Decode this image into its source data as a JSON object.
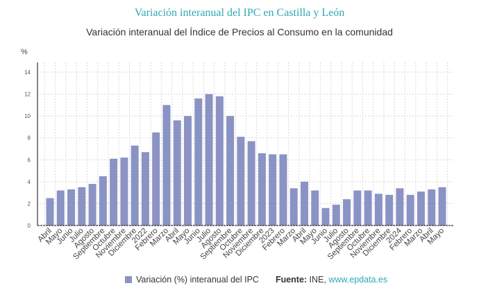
{
  "chart_data": {
    "type": "bar",
    "title": "Variación interanual del IPC en Castilla y León",
    "subtitle": "Variación interanual del Índice de Precios al Consumo en la comunidad",
    "ylabel": "%",
    "xlabel": "",
    "ylim": [
      0,
      14
    ],
    "yticks": [
      0,
      2,
      4,
      6,
      8,
      10,
      12,
      14
    ],
    "grid": true,
    "legend_placement": "bottom",
    "bar_color": "#8a93c4",
    "categories": [
      "Abril",
      "Mayo",
      "Junio",
      "Julio",
      "Agosto",
      "Septiembre",
      "Octubre",
      "Noviembre",
      "Diciembre",
      "2022",
      "Febrero",
      "Marzo",
      "Abril",
      "Mayo",
      "Junio",
      "Julio",
      "Agosto",
      "Septiembre",
      "Octubre",
      "Noviembre",
      "Diciembre",
      "2023",
      "Febrero",
      "Marzo",
      "Abril",
      "Mayo",
      "Junio",
      "Julio",
      "Agosto",
      "Septiembre",
      "Octubre",
      "Noviembre",
      "Diciembre",
      "2024",
      "Febrero",
      "Marzo",
      "Abril",
      "Mayo"
    ],
    "series": [
      {
        "name": "Variación (%) interanual del IPC",
        "values": [
          2.5,
          3.2,
          3.3,
          3.5,
          3.8,
          4.5,
          6.1,
          6.2,
          7.3,
          6.7,
          8.5,
          11.0,
          9.6,
          10.0,
          11.6,
          12.0,
          11.8,
          10.0,
          8.1,
          7.7,
          6.6,
          6.5,
          6.5,
          3.4,
          4.0,
          3.2,
          1.6,
          1.9,
          2.4,
          3.2,
          3.2,
          2.9,
          2.8,
          3.4,
          2.8,
          3.1,
          3.3,
          3.5
        ]
      }
    ]
  },
  "legend": {
    "series_label": "Variación (%) interanual del IPC",
    "source_label": "Fuente:",
    "source_text": " INE, ",
    "source_link": "www.epdata.es"
  }
}
